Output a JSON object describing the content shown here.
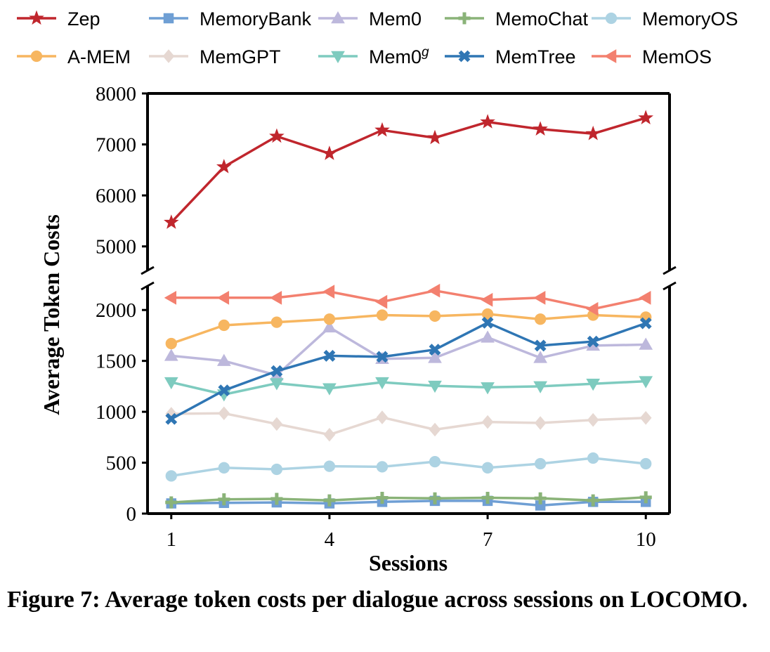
{
  "caption": "Figure 7: Average token costs per dialogue across sessions on LOCOMO.",
  "chart_data": {
    "type": "line",
    "xlabel": "Sessions",
    "ylabel": "Average Token Costs",
    "x": [
      1,
      2,
      3,
      4,
      5,
      6,
      7,
      8,
      9,
      10
    ],
    "xticks": [
      "1",
      "4",
      "7",
      "10"
    ],
    "y_axis_break": true,
    "upper_segment": {
      "ylim": [
        4500,
        8000
      ],
      "yticks": [
        "5000",
        "6000",
        "7000",
        "8000"
      ]
    },
    "lower_segment": {
      "ylim": [
        0,
        2250
      ],
      "yticks": [
        "0",
        "500",
        "1000",
        "1500",
        "2000"
      ]
    },
    "legend_position": "top",
    "series": [
      {
        "name": "Zep",
        "color": "#c0262d",
        "marker": "star",
        "values": [
          5470,
          6560,
          7160,
          6820,
          7280,
          7130,
          7440,
          7300,
          7210,
          7520
        ]
      },
      {
        "name": "MemoryBank",
        "color": "#6f9fd4",
        "marker": "square",
        "values": [
          100,
          105,
          110,
          100,
          115,
          125,
          125,
          80,
          115,
          115
        ]
      },
      {
        "name": "Mem0",
        "color": "#bdb8dc",
        "marker": "triangle-up",
        "values": [
          1550,
          1500,
          1360,
          1830,
          1520,
          1530,
          1730,
          1530,
          1650,
          1660
        ]
      },
      {
        "name": "MemoChat",
        "color": "#8ab378",
        "marker": "plus",
        "values": [
          110,
          140,
          145,
          130,
          155,
          150,
          155,
          150,
          130,
          160
        ]
      },
      {
        "name": "MemoryOS",
        "color": "#add3e3",
        "marker": "circle",
        "values": [
          370,
          450,
          435,
          465,
          460,
          510,
          450,
          490,
          545,
          490
        ]
      },
      {
        "name": "A-MEM",
        "color": "#f7b660",
        "marker": "circle",
        "values": [
          1670,
          1850,
          1880,
          1910,
          1950,
          1940,
          1960,
          1910,
          1950,
          1930
        ]
      },
      {
        "name": "MemGPT",
        "color": "#e6d8d2",
        "marker": "diamond",
        "values": [
          980,
          985,
          880,
          775,
          945,
          825,
          900,
          890,
          920,
          940
        ]
      },
      {
        "name": "Mem0",
        "name_sup": "g",
        "color": "#7ecbbf",
        "marker": "triangle-down",
        "values": [
          1290,
          1170,
          1280,
          1230,
          1290,
          1255,
          1240,
          1250,
          1275,
          1300
        ]
      },
      {
        "name": "MemTree",
        "color": "#2f76b4",
        "marker": "x",
        "values": [
          930,
          1210,
          1400,
          1550,
          1540,
          1610,
          1875,
          1650,
          1690,
          1870
        ]
      },
      {
        "name": "MemOS",
        "color": "#f3806f",
        "marker": "triangle-left",
        "values": [
          2120,
          2120,
          2120,
          2180,
          2080,
          2190,
          2100,
          2120,
          2010,
          2120
        ]
      }
    ]
  }
}
